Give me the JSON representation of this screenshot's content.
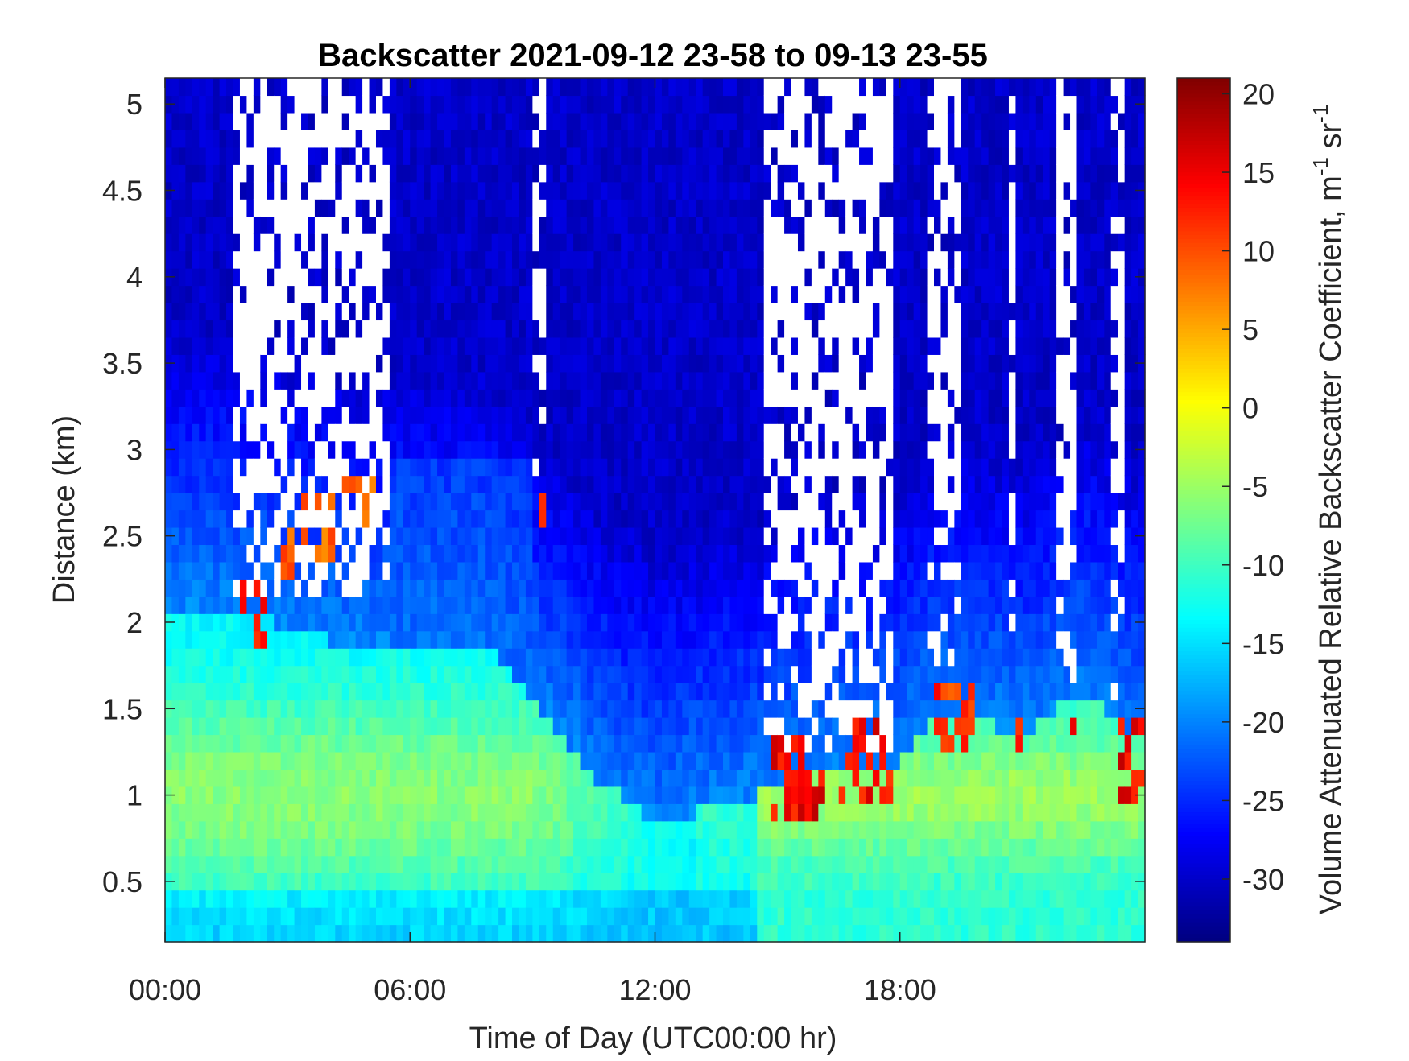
{
  "chart_data": {
    "type": "heatmap",
    "title": "Backscatter 2021-09-12 23-58 to 09-13 23-55",
    "xlabel": "Time of Day (UTC00:00 hr)",
    "ylabel": "Distance (km)",
    "colorbar_label": "Volume Attenuated Relative Backscatter Coefficient, m",
    "colorbar_label_exp1": "-1",
    "colorbar_label_mid": " sr",
    "colorbar_label_exp2": "-1",
    "x_ticks": [
      "00:00",
      "06:00",
      "12:00",
      "18:00"
    ],
    "x_tick_hours": [
      0,
      6,
      12,
      18
    ],
    "xlim_hours": [
      0,
      24
    ],
    "y_ticks": [
      "0.5",
      "1",
      "1.5",
      "2",
      "2.5",
      "3",
      "3.5",
      "4",
      "4.5",
      "5"
    ],
    "y_tick_values": [
      0.5,
      1,
      1.5,
      2,
      2.5,
      3,
      3.5,
      4,
      4.5,
      5
    ],
    "ylim_km": [
      0.15,
      5.15
    ],
    "colorbar_ticks": [
      "20",
      "15",
      "10",
      "5",
      "0",
      "-5",
      "-10",
      "-15",
      "-20",
      "-25",
      "-30"
    ],
    "colorbar_tick_values": [
      20,
      15,
      10,
      5,
      0,
      -5,
      -10,
      -15,
      -20,
      -25,
      -30
    ],
    "clim": [
      -34,
      21
    ],
    "colormap": "jet",
    "colors": {
      "missing": "#ffffff",
      "axis": "#262626"
    },
    "features": {
      "boundary_layer_top_km": [
        [
          0,
          2.1
        ],
        [
          1.5,
          2.1
        ],
        [
          4,
          1.9
        ],
        [
          8,
          1.85
        ],
        [
          9.5,
          1.4
        ],
        [
          10.5,
          1.1
        ],
        [
          12,
          0.85
        ],
        [
          13,
          0.9
        ],
        [
          14.5,
          1.0
        ],
        [
          16,
          1.2
        ],
        [
          18,
          1.2
        ],
        [
          19,
          1.5
        ],
        [
          21,
          1.35
        ],
        [
          22.5,
          1.6
        ],
        [
          24,
          1.3
        ]
      ],
      "elevated_cloud_layers": [
        {
          "t0": 1.8,
          "t1": 2.5,
          "z": 2.05,
          "value": 12
        },
        {
          "t0": 2.8,
          "t1": 3.2,
          "z": 2.4,
          "value": 9
        },
        {
          "t0": 3.3,
          "t1": 4.2,
          "z": 2.55,
          "value": 8
        },
        {
          "t0": 4.3,
          "t1": 5.4,
          "z": 2.68,
          "value": 8
        },
        {
          "t0": 9.1,
          "t1": 9.4,
          "z": 2.6,
          "value": 9
        }
      ],
      "low_clouds": [
        {
          "t0": 14.8,
          "t1": 16.2,
          "z": 1.1,
          "value": 13
        },
        {
          "t0": 16.5,
          "t1": 17.8,
          "z": 1.2,
          "value": 12
        },
        {
          "t0": 18.8,
          "t1": 19.8,
          "z": 1.45,
          "value": 10
        },
        {
          "t0": 20.8,
          "t1": 21.0,
          "z": 1.35,
          "value": 12
        },
        {
          "t0": 22.1,
          "t1": 22.4,
          "z": 1.3,
          "value": 13
        },
        {
          "t0": 23.3,
          "t1": 24.0,
          "z": 1.2,
          "value": 13
        }
      ],
      "missing_data_spans": [
        {
          "t0": 1.7,
          "t1": 5.5,
          "zmin": 2.2
        },
        {
          "t0": 9.0,
          "t1": 9.3,
          "zmin": 2.9
        },
        {
          "t0": 14.7,
          "t1": 17.8,
          "zmin": 1.3
        },
        {
          "t0": 18.6,
          "t1": 19.5,
          "zmin": 1.8
        },
        {
          "t0": 20.6,
          "t1": 20.8,
          "zmin": 1.7
        },
        {
          "t0": 21.9,
          "t1": 22.4,
          "zmin": 1.7
        },
        {
          "t0": 23.1,
          "t1": 23.5,
          "zmin": 1.6
        }
      ]
    }
  }
}
